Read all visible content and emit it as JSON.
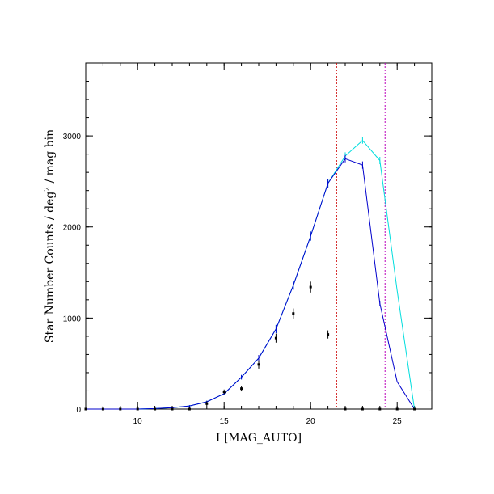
{
  "chart_data": {
    "type": "line",
    "xlabel": "I [MAG_AUTO]",
    "ylabel_main": "Star Number Counts / deg",
    "ylabel_sup": "2",
    "ylabel_tail": " / mag bin",
    "xlim": [
      7,
      27
    ],
    "ylim": [
      0,
      3800
    ],
    "x_ticks_major": [
      10,
      15,
      20,
      25
    ],
    "y_ticks_major": [
      0,
      1000,
      2000,
      3000
    ],
    "x_ticks_minor_step": 1,
    "y_ticks_minor_step": 200,
    "grid": false,
    "vlines": [
      {
        "x": 21.5,
        "color": "#cc0000"
      },
      {
        "x": 24.3,
        "color": "#bb00bb"
      }
    ],
    "series": [
      {
        "style": "line-errorbar",
        "color": "#00dddd",
        "points": [
          {
            "x": 7,
            "y": 0,
            "err": 0
          },
          {
            "x": 8,
            "y": 0,
            "err": 0
          },
          {
            "x": 9,
            "y": 0,
            "err": 0
          },
          {
            "x": 10,
            "y": 0,
            "err": 0
          },
          {
            "x": 11,
            "y": 5,
            "err": 3
          },
          {
            "x": 12,
            "y": 15,
            "err": 5
          },
          {
            "x": 13,
            "y": 35,
            "err": 8
          },
          {
            "x": 14,
            "y": 80,
            "err": 12
          },
          {
            "x": 15,
            "y": 170,
            "err": 18
          },
          {
            "x": 16,
            "y": 350,
            "err": 25
          },
          {
            "x": 17,
            "y": 560,
            "err": 35
          },
          {
            "x": 18,
            "y": 880,
            "err": 45
          },
          {
            "x": 19,
            "y": 1360,
            "err": 50
          },
          {
            "x": 20,
            "y": 1900,
            "err": 50
          },
          {
            "x": 21,
            "y": 2480,
            "err": 50
          },
          {
            "x": 22,
            "y": 2780,
            "err": 40
          },
          {
            "x": 23,
            "y": 2950,
            "err": 35
          },
          {
            "x": 24,
            "y": 2730,
            "err": 40
          },
          {
            "x": 25,
            "y": 1300,
            "err": 0
          },
          {
            "x": 26,
            "y": 0,
            "err": 0
          }
        ]
      },
      {
        "style": "line-errorbar",
        "color": "#0000cc",
        "points": [
          {
            "x": 7,
            "y": 0,
            "err": 0
          },
          {
            "x": 8,
            "y": 0,
            "err": 0
          },
          {
            "x": 9,
            "y": 0,
            "err": 0
          },
          {
            "x": 10,
            "y": 0,
            "err": 0
          },
          {
            "x": 11,
            "y": 5,
            "err": 3
          },
          {
            "x": 12,
            "y": 15,
            "err": 5
          },
          {
            "x": 13,
            "y": 35,
            "err": 8
          },
          {
            "x": 14,
            "y": 80,
            "err": 12
          },
          {
            "x": 15,
            "y": 170,
            "err": 18
          },
          {
            "x": 16,
            "y": 350,
            "err": 25
          },
          {
            "x": 17,
            "y": 560,
            "err": 35
          },
          {
            "x": 18,
            "y": 880,
            "err": 45
          },
          {
            "x": 19,
            "y": 1360,
            "err": 50
          },
          {
            "x": 20,
            "y": 1900,
            "err": 50
          },
          {
            "x": 21,
            "y": 2480,
            "err": 50
          },
          {
            "x": 22,
            "y": 2750,
            "err": 40
          },
          {
            "x": 23,
            "y": 2680,
            "err": 40
          },
          {
            "x": 24,
            "y": 1160,
            "err": 30
          },
          {
            "x": 25,
            "y": 300,
            "err": 0
          },
          {
            "x": 26,
            "y": 0,
            "err": 0
          }
        ]
      },
      {
        "style": "points-errorbar",
        "color": "#000000",
        "points": [
          {
            "x": 7,
            "y": 0,
            "err": 0
          },
          {
            "x": 8,
            "y": 0,
            "err": 0
          },
          {
            "x": 9,
            "y": 0,
            "err": 0
          },
          {
            "x": 10,
            "y": 0,
            "err": 0
          },
          {
            "x": 11,
            "y": 0,
            "err": 0
          },
          {
            "x": 12,
            "y": 0,
            "err": 0
          },
          {
            "x": 13,
            "y": 0,
            "err": 0
          },
          {
            "x": 14,
            "y": 60,
            "err": 25
          },
          {
            "x": 15,
            "y": 190,
            "err": 25
          },
          {
            "x": 16,
            "y": 225,
            "err": 30
          },
          {
            "x": 17,
            "y": 490,
            "err": 45
          },
          {
            "x": 18,
            "y": 780,
            "err": 50
          },
          {
            "x": 19,
            "y": 1050,
            "err": 55
          },
          {
            "x": 20,
            "y": 1340,
            "err": 60
          },
          {
            "x": 21,
            "y": 820,
            "err": 45
          },
          {
            "x": 22,
            "y": 0,
            "err": 0
          },
          {
            "x": 23,
            "y": 0,
            "err": 0
          },
          {
            "x": 24,
            "y": 0,
            "err": 0
          },
          {
            "x": 25,
            "y": 0,
            "err": 0
          },
          {
            "x": 26,
            "y": 0,
            "err": 0
          }
        ]
      }
    ]
  }
}
